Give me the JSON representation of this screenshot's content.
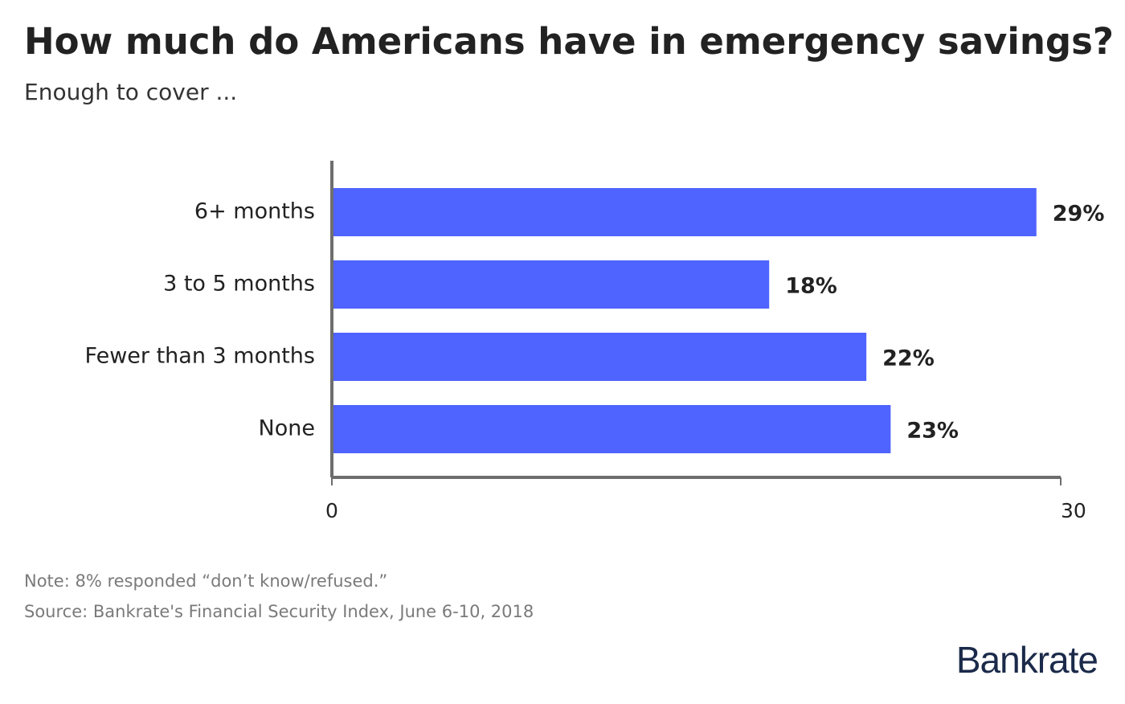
{
  "chart_data": {
    "type": "bar",
    "orientation": "horizontal",
    "title": "How much do Americans have in emergency savings?",
    "subtitle": "Enough to cover ...",
    "categories": [
      "6+ months",
      "3 to 5 months",
      "Fewer than 3 months",
      "None"
    ],
    "values": [
      29,
      18,
      22,
      23
    ],
    "value_labels": [
      "29%",
      "18%",
      "22%",
      "23%"
    ],
    "color": "#4f63ff",
    "xlim": [
      0,
      30
    ],
    "xticks": [
      0,
      30
    ],
    "grid": false,
    "note": "Note: 8% responded “don’t know/refused.”",
    "source": "Source: Bankrate's Financial Security Index, June 6-10, 2018"
  },
  "brand": "Bankrate"
}
